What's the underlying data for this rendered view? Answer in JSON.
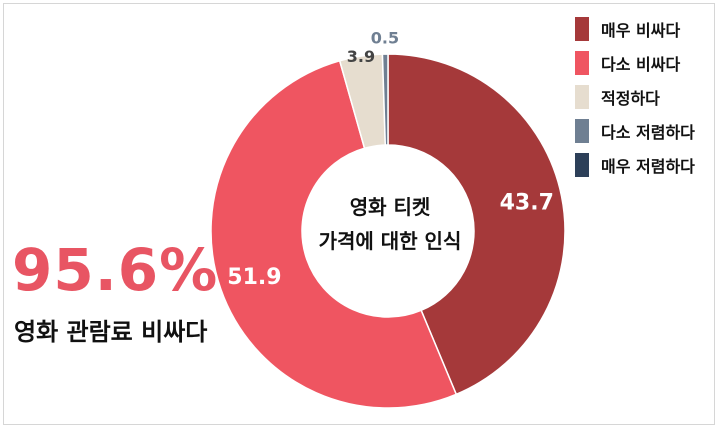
{
  "chart_data": {
    "type": "pie",
    "title": "영화 티켓 가격에 대한 인식",
    "categories": [
      "매우 비싸다",
      "다소 비싸다",
      "적정하다",
      "다소 저렴하다",
      "매우 저렴하다"
    ],
    "values": [
      43.7,
      51.9,
      3.9,
      0.5,
      0.0
    ],
    "value_labels": [
      "43.7",
      "51.9",
      "3.9",
      "0.5",
      ""
    ],
    "colors": [
      "#a5393a",
      "#ef5561",
      "#e6ddcf",
      "#6f7f92",
      "#2d4059"
    ],
    "donut": true,
    "legend": "top-right"
  },
  "center_title": {
    "line1": "영화 티켓",
    "line2": "가격에 대한 인식"
  },
  "highlight": {
    "percent": "95.6%",
    "caption": "영화 관람료 비싸다"
  }
}
